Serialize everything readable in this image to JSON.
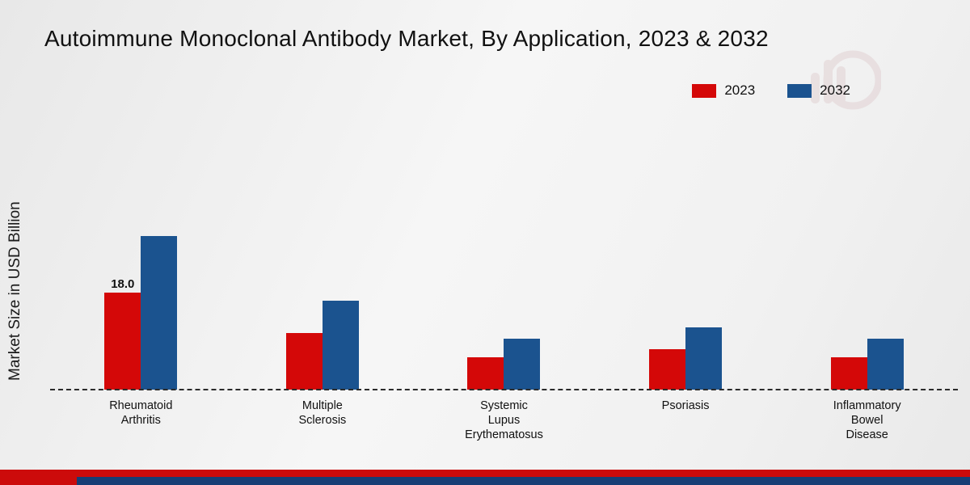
{
  "page": {
    "title": "Autoimmune Monoclonal Antibody Market, By Application, 2023 & 2032"
  },
  "chart_data": {
    "type": "bar",
    "title": "Autoimmune Monoclonal Antibody Market, By Application, 2023 & 2032",
    "xlabel": "",
    "ylabel": "Market Size in USD Billion",
    "ylim": [
      0,
      30
    ],
    "grid": false,
    "legend_position": "top-right",
    "baseline_style": "dashed",
    "categories": [
      "Rheumatoid Arthritis",
      "Multiple Sclerosis",
      "Systemic Lupus Erythematosus",
      "Psoriasis",
      "Inflammatory Bowel Disease"
    ],
    "category_lines": [
      [
        "Rheumatoid",
        "Arthritis"
      ],
      [
        "Multiple",
        "Sclerosis"
      ],
      [
        "Systemic",
        "Lupus",
        "Erythematosus"
      ],
      [
        "Psoriasis"
      ],
      [
        "Inflammatory",
        "Bowel",
        "Disease"
      ]
    ],
    "series": [
      {
        "name": "2023",
        "color": "#d40808",
        "values": [
          18.0,
          10.5,
          6.0,
          7.5,
          6.0
        ],
        "labels": [
          "18.0",
          null,
          null,
          null,
          null
        ]
      },
      {
        "name": "2032",
        "color": "#1b538f",
        "values": [
          28.5,
          16.5,
          9.5,
          11.5,
          9.5
        ],
        "labels": [
          null,
          null,
          null,
          null,
          null
        ]
      }
    ]
  },
  "colors": {
    "bar_2023": "#d40808",
    "bar_2032": "#1b538f",
    "footer_red": "#cc0b0b",
    "footer_blue": "#163e75",
    "baseline": "#2b2b2b"
  }
}
